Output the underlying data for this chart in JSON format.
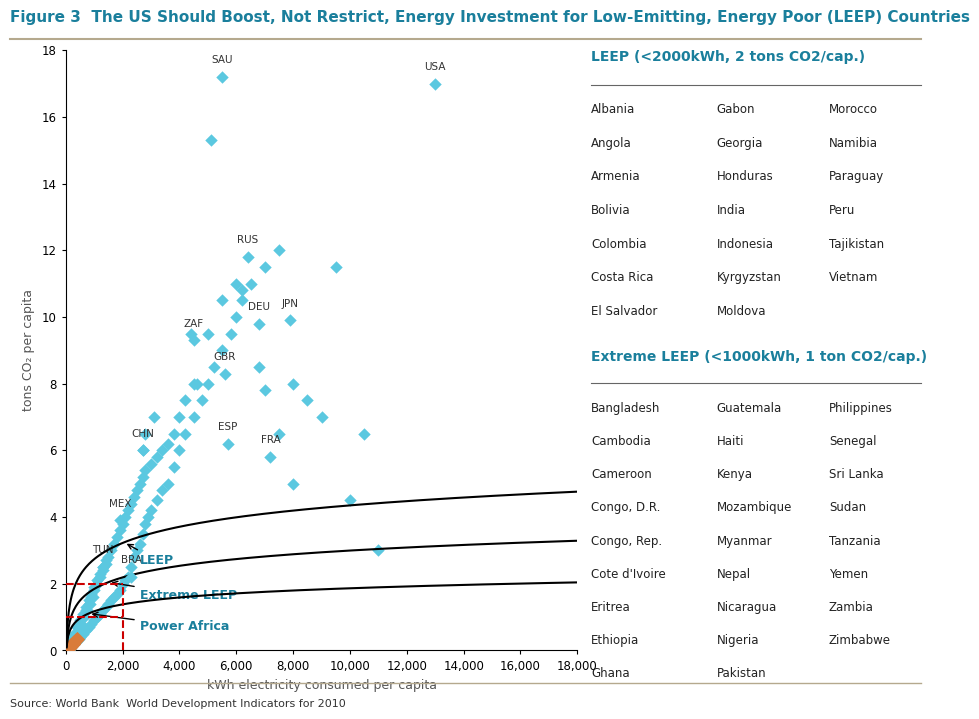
{
  "title": "Figure 3  The US Should Boost, Not Restrict, Energy Investment for Low-Emitting, Energy Poor (LEEP) Countries",
  "title_color": "#1a7f9c",
  "xlabel": "kWh electricity consumed per capita",
  "ylabel": "tons CO₂ per capita",
  "source": "Source: World Bank  World Development Indicators for 2010",
  "xlim": [
    0,
    18000
  ],
  "ylim": [
    0,
    18
  ],
  "xticks": [
    0,
    2000,
    4000,
    6000,
    8000,
    10000,
    12000,
    14000,
    16000,
    18000
  ],
  "yticks": [
    0,
    2,
    4,
    6,
    8,
    10,
    12,
    14,
    16,
    18
  ],
  "scatter_color": "#5bc8e0",
  "scatter_marker": "D",
  "scatter_size": 40,
  "power_africa_color": "#d97b3a",
  "power_africa_marker": "D",
  "power_africa_size": 60,
  "curve_color": "#000000",
  "dashed_line_color": "#cc0000",
  "labeled_points": {
    "SAU": [
      5500,
      17.2
    ],
    "USA": [
      13000,
      17.0
    ],
    "RUS": [
      6400,
      11.8
    ],
    "ZAF": [
      4500,
      9.3
    ],
    "DEU": [
      6800,
      9.8
    ],
    "GBR": [
      5600,
      8.3
    ],
    "JPN": [
      7900,
      9.9
    ],
    "ESP": [
      5700,
      6.2
    ],
    "FRA": [
      7200,
      5.8
    ],
    "CHN": [
      2700,
      6.0
    ],
    "MEX": [
      1900,
      3.9
    ],
    "TUN": [
      1300,
      2.5
    ],
    "BRA": [
      2300,
      2.2
    ]
  },
  "scatter_data": [
    [
      200,
      0.1
    ],
    [
      300,
      0.2
    ],
    [
      150,
      0.05
    ],
    [
      400,
      0.3
    ],
    [
      500,
      0.4
    ],
    [
      600,
      0.5
    ],
    [
      250,
      0.15
    ],
    [
      350,
      0.25
    ],
    [
      450,
      0.35
    ],
    [
      700,
      0.6
    ],
    [
      800,
      0.7
    ],
    [
      900,
      0.8
    ],
    [
      1000,
      0.9
    ],
    [
      1100,
      1.0
    ],
    [
      1200,
      1.1
    ],
    [
      1300,
      1.2
    ],
    [
      1400,
      1.3
    ],
    [
      1500,
      1.4
    ],
    [
      1600,
      1.5
    ],
    [
      1700,
      1.6
    ],
    [
      1800,
      1.7
    ],
    [
      1900,
      1.8
    ],
    [
      2000,
      2.0
    ],
    [
      2100,
      2.1
    ],
    [
      2200,
      2.2
    ],
    [
      2300,
      2.5
    ],
    [
      2400,
      2.8
    ],
    [
      2500,
      3.0
    ],
    [
      2600,
      3.2
    ],
    [
      2700,
      3.5
    ],
    [
      2800,
      3.8
    ],
    [
      2900,
      4.0
    ],
    [
      3000,
      4.2
    ],
    [
      3200,
      4.5
    ],
    [
      3400,
      4.8
    ],
    [
      3600,
      5.0
    ],
    [
      3800,
      5.5
    ],
    [
      4000,
      6.0
    ],
    [
      4200,
      6.5
    ],
    [
      4500,
      7.0
    ],
    [
      4800,
      7.5
    ],
    [
      5000,
      8.0
    ],
    [
      5200,
      8.5
    ],
    [
      5500,
      9.0
    ],
    [
      5800,
      9.5
    ],
    [
      6000,
      10.0
    ],
    [
      6200,
      10.5
    ],
    [
      6500,
      11.0
    ],
    [
      7000,
      11.5
    ],
    [
      7500,
      12.0
    ],
    [
      8000,
      8.0
    ],
    [
      8500,
      7.5
    ],
    [
      9000,
      7.0
    ],
    [
      9500,
      11.5
    ],
    [
      10000,
      4.5
    ],
    [
      10500,
      6.5
    ],
    [
      11000,
      3.0
    ],
    [
      500,
      0.8
    ],
    [
      600,
      1.0
    ],
    [
      700,
      1.2
    ],
    [
      800,
      1.4
    ],
    [
      900,
      1.6
    ],
    [
      1000,
      1.8
    ],
    [
      1100,
      2.0
    ],
    [
      1200,
      2.2
    ],
    [
      1300,
      2.4
    ],
    [
      1400,
      2.6
    ],
    [
      1500,
      2.8
    ],
    [
      1600,
      3.0
    ],
    [
      1700,
      3.2
    ],
    [
      1800,
      3.4
    ],
    [
      1900,
      3.6
    ],
    [
      2000,
      3.8
    ],
    [
      2100,
      4.0
    ],
    [
      2200,
      4.2
    ],
    [
      2300,
      4.4
    ],
    [
      2400,
      4.6
    ],
    [
      2500,
      4.8
    ],
    [
      2600,
      5.0
    ],
    [
      2700,
      5.2
    ],
    [
      2800,
      5.4
    ],
    [
      3000,
      5.6
    ],
    [
      3200,
      5.8
    ],
    [
      3400,
      6.0
    ],
    [
      3600,
      6.2
    ],
    [
      3800,
      6.5
    ],
    [
      4000,
      7.0
    ],
    [
      4200,
      7.5
    ],
    [
      4500,
      8.0
    ],
    [
      5000,
      9.5
    ],
    [
      5500,
      10.5
    ],
    [
      6000,
      11.0
    ],
    [
      6200,
      10.8
    ],
    [
      6800,
      8.5
    ],
    [
      7000,
      7.8
    ],
    [
      7500,
      6.5
    ],
    [
      8000,
      5.0
    ],
    [
      300,
      0.5
    ],
    [
      400,
      0.7
    ],
    [
      500,
      0.9
    ],
    [
      600,
      1.1
    ],
    [
      700,
      1.3
    ],
    [
      800,
      1.5
    ],
    [
      900,
      1.7
    ],
    [
      1000,
      1.9
    ],
    [
      1100,
      2.1
    ],
    [
      1200,
      2.3
    ],
    [
      1300,
      2.5
    ],
    [
      1400,
      2.7
    ],
    [
      200,
      0.3
    ],
    [
      350,
      0.4
    ],
    [
      450,
      0.6
    ],
    [
      550,
      0.8
    ],
    [
      650,
      1.0
    ],
    [
      750,
      1.2
    ],
    [
      850,
      1.4
    ],
    [
      950,
      1.6
    ],
    [
      2700,
      6.0
    ],
    [
      2800,
      6.5
    ],
    [
      3100,
      7.0
    ],
    [
      4400,
      9.5
    ],
    [
      4600,
      8.0
    ],
    [
      5100,
      15.3
    ]
  ],
  "power_africa_data": [
    [
      150,
      0.1
    ],
    [
      200,
      0.15
    ],
    [
      250,
      0.2
    ],
    [
      300,
      0.25
    ],
    [
      350,
      0.3
    ],
    [
      400,
      0.35
    ],
    [
      100,
      0.08
    ],
    [
      180,
      0.12
    ]
  ],
  "leep_countries": [
    [
      "Albania",
      "Gabon",
      "Morocco"
    ],
    [
      "Angola",
      "Georgia",
      "Namibia"
    ],
    [
      "Armenia",
      "Honduras",
      "Paraguay"
    ],
    [
      "Bolivia",
      "India",
      "Peru"
    ],
    [
      "Colombia",
      "Indonesia",
      "Tajikistan"
    ],
    [
      "Costa Rica",
      "Kyrgyzstan",
      "Vietnam"
    ],
    [
      "El Salvador",
      "Moldova",
      ""
    ]
  ],
  "extreme_leep_countries": [
    [
      "Bangladesh",
      "Guatemala",
      "Philippines"
    ],
    [
      "Cambodia",
      "Haiti",
      "Senegal"
    ],
    [
      "Cameroon",
      "Kenya",
      "Sri Lanka"
    ],
    [
      "Congo, D.R.",
      "Mozambique",
      "Sudan"
    ],
    [
      "Congo, Rep.",
      "Myanmar",
      "Tanzania"
    ],
    [
      "Cote d'Ivoire",
      "Nepal",
      "Yemen"
    ],
    [
      "Eritrea",
      "Nicaragua",
      "Zambia"
    ],
    [
      "Ethiopia",
      "Nigeria",
      "Zimbabwe"
    ],
    [
      "Ghana",
      "Pakistan",
      ""
    ]
  ],
  "leep_header": "LEEP (<2000kWh, 2 tons CO2/cap.)",
  "extreme_leep_header": "Extreme LEEP (<1000kWh, 1 ton CO2/cap.)",
  "header_color": "#1a7f9c",
  "background_color": "#ffffff",
  "curve_annotation_leep": "LEEP",
  "curve_annotation_extreme": "Extreme LEEP",
  "curve_annotation_power": "Power Africa",
  "annotation_color": "#1a7f9c",
  "separator_color": "#b5a98e"
}
